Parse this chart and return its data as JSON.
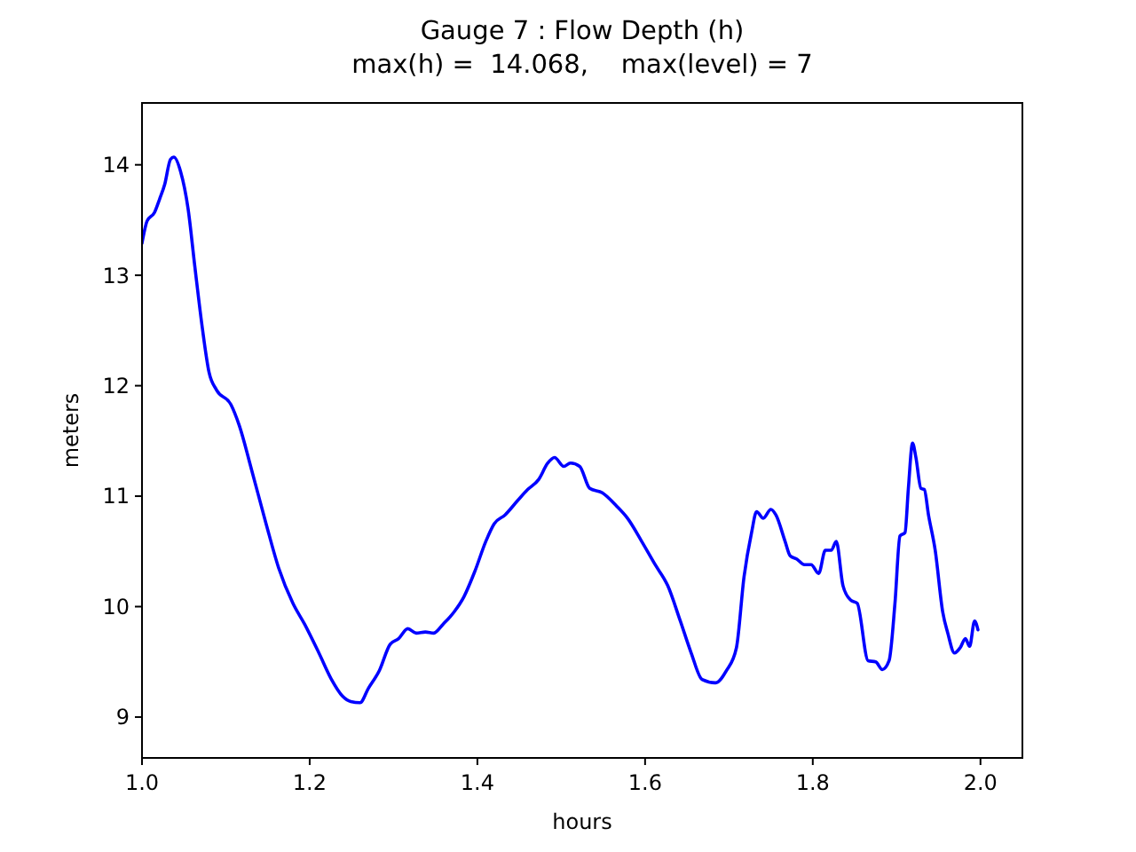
{
  "chart_data": {
    "type": "line",
    "title": "Gauge 7 : Flow Depth (h)",
    "subtitle": "max(h) =  14.068,    max(level) = 7",
    "xlabel": "hours",
    "ylabel": "meters",
    "xlim": [
      1.0,
      2.05
    ],
    "ylim": [
      8.63,
      14.56
    ],
    "xticks": [
      {
        "value": 1.0,
        "label": "1.0"
      },
      1.2,
      1.4,
      1.6,
      1.8,
      {
        "value": 2.0,
        "label": "2.0"
      }
    ],
    "yticks": [
      9,
      10,
      11,
      12,
      13,
      14
    ],
    "series": [
      {
        "color": "#0000ff",
        "x": [
          1.0,
          1.006,
          1.015,
          1.021,
          1.027,
          1.034,
          1.038,
          1.046,
          1.055,
          1.063,
          1.072,
          1.08,
          1.089,
          1.106,
          1.116,
          1.131,
          1.148,
          1.163,
          1.18,
          1.194,
          1.211,
          1.226,
          1.239,
          1.249,
          1.26,
          1.27,
          1.283,
          1.296,
          1.306,
          1.317,
          1.327,
          1.338,
          1.348,
          1.359,
          1.372,
          1.384,
          1.397,
          1.41,
          1.42,
          1.433,
          1.448,
          1.46,
          1.473,
          1.484,
          1.492,
          1.503,
          1.511,
          1.522,
          1.534,
          1.549,
          1.566,
          1.579,
          1.596,
          1.612,
          1.627,
          1.642,
          1.655,
          1.668,
          1.684,
          1.697,
          1.709,
          1.718,
          1.727,
          1.733,
          1.741,
          1.75,
          1.756,
          1.767,
          1.773,
          1.781,
          1.79,
          1.798,
          1.807,
          1.815,
          1.822,
          1.828,
          1.836,
          1.845,
          1.853,
          1.866,
          1.875,
          1.883,
          1.891,
          1.898,
          1.904,
          1.91,
          1.914,
          1.919,
          1.923,
          1.929,
          1.933,
          1.938,
          1.946,
          1.955,
          1.961,
          1.969,
          1.976,
          1.982,
          1.987,
          1.993,
          1.997
        ],
        "values": [
          13.29,
          13.49,
          13.57,
          13.69,
          13.82,
          14.05,
          14.07,
          13.94,
          13.6,
          13.08,
          12.52,
          12.12,
          11.96,
          11.83,
          11.64,
          11.23,
          10.75,
          10.35,
          10.03,
          9.84,
          9.58,
          9.34,
          9.19,
          9.14,
          9.13,
          9.26,
          9.42,
          9.66,
          9.71,
          9.8,
          9.76,
          9.77,
          9.76,
          9.84,
          9.95,
          10.09,
          10.32,
          10.59,
          10.75,
          10.83,
          10.96,
          11.06,
          11.15,
          11.3,
          11.35,
          11.27,
          11.3,
          11.27,
          11.07,
          11.03,
          10.91,
          10.8,
          10.59,
          10.38,
          10.19,
          9.87,
          9.58,
          9.34,
          9.31,
          9.42,
          9.63,
          10.27,
          10.67,
          10.86,
          10.8,
          10.88,
          10.83,
          10.59,
          10.46,
          10.43,
          10.38,
          10.38,
          10.3,
          10.51,
          10.51,
          10.59,
          10.19,
          10.06,
          10.03,
          9.51,
          9.5,
          9.43,
          9.51,
          10.03,
          10.64,
          10.67,
          11.07,
          11.48,
          11.35,
          11.07,
          11.06,
          10.83,
          10.51,
          9.95,
          9.76,
          9.58,
          9.63,
          9.71,
          9.64,
          9.87,
          9.79
        ]
      }
    ]
  }
}
